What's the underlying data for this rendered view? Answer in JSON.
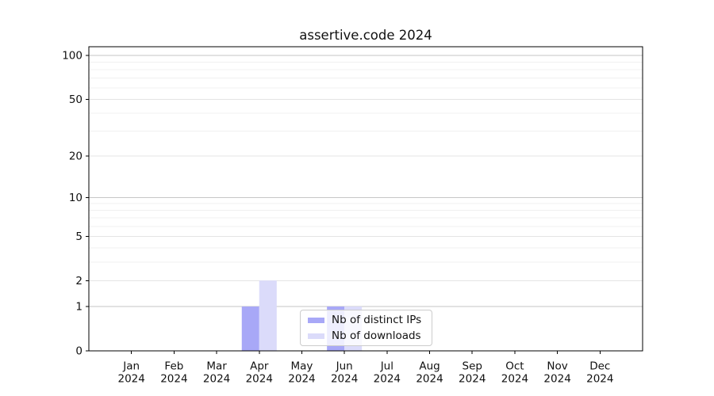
{
  "chart_data": {
    "type": "bar",
    "title": "assertive.code 2024",
    "xlabel": "",
    "ylabel": "",
    "year_label": "2024",
    "categories": [
      "Jan",
      "Feb",
      "Mar",
      "Apr",
      "May",
      "Jun",
      "Jul",
      "Aug",
      "Sep",
      "Oct",
      "Nov",
      "Dec"
    ],
    "series": [
      {
        "name": "Nb of distinct IPs",
        "color": "#a8a8f7",
        "values": [
          0,
          0,
          0,
          1,
          0,
          1,
          0,
          0,
          0,
          0,
          0,
          0
        ]
      },
      {
        "name": "Nb of downloads",
        "color": "#dbdbfa",
        "values": [
          0,
          0,
          0,
          2,
          0,
          1,
          0,
          0,
          0,
          0,
          0,
          0
        ]
      }
    ],
    "y_axis": {
      "scale": "log1p",
      "ticks": [
        0,
        1,
        2,
        5,
        10,
        20,
        50,
        100
      ],
      "major_gridline_values": [
        1,
        10,
        100
      ],
      "minor_gridline_values": [
        3,
        4,
        6,
        7,
        8,
        9,
        30,
        40,
        60,
        70,
        80,
        90
      ],
      "ylim": [
        0,
        115
      ]
    },
    "grid": true,
    "legend": {
      "position": "bottom-center"
    },
    "colors": {
      "bar_distinct_ips": "#a8a8f7",
      "bar_downloads": "#dbdbfa",
      "axis": "#000000",
      "text": "#111111",
      "grid_major": "#c6c6c6",
      "grid_labeled": "#e4e4e4",
      "grid_minor": "#f0f0f0",
      "legend_border": "#cccccc"
    }
  }
}
